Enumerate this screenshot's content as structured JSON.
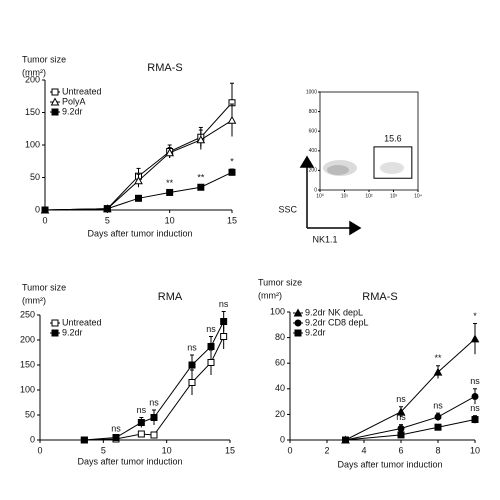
{
  "chart_data": [
    {
      "type": "line",
      "title": "RMA-S",
      "y_label": [
        "Tumor size",
        "(mm²)"
      ],
      "x_label": "Days after tumor induction",
      "x": [
        0,
        5,
        7.5,
        10,
        12.5,
        15
      ],
      "xlim": [
        0,
        15
      ],
      "xticks": [
        0,
        5,
        10,
        15
      ],
      "ylim": [
        0,
        200
      ],
      "yticks": [
        0,
        50,
        100,
        150,
        200
      ],
      "series": [
        {
          "name": "Untreated",
          "color": "#000000",
          "marker": "square",
          "filled": false,
          "values": [
            0,
            2,
            52,
            90,
            112,
            165
          ],
          "errors": [
            0,
            0,
            12,
            10,
            15,
            30
          ],
          "annotations": [
            null,
            null,
            null,
            null,
            null,
            null
          ]
        },
        {
          "name": "PolyA",
          "color": "#000000",
          "marker": "triangle",
          "filled": false,
          "values": [
            0,
            2,
            45,
            88,
            108,
            138
          ],
          "errors": [
            0,
            0,
            10,
            8,
            15,
            25
          ],
          "annotations": [
            null,
            null,
            null,
            null,
            null,
            null
          ]
        },
        {
          "name": "9.2dr",
          "color": "#000000",
          "marker": "square",
          "filled": true,
          "values": [
            0,
            2,
            18,
            27,
            35,
            58
          ],
          "errors": [
            0,
            0,
            3,
            3,
            3,
            5
          ],
          "annotations": [
            null,
            null,
            null,
            "**",
            "**",
            "*"
          ]
        }
      ]
    },
    {
      "type": "flow",
      "y_label": "SSC",
      "x_label": "NK1.1",
      "gate_label": "15.6",
      "log_x": true,
      "xlim": [
        1,
        10000
      ],
      "xticks": [
        {
          "value": 1,
          "label": "10⁰"
        },
        {
          "value": 10,
          "label": "10¹"
        },
        {
          "value": 100,
          "label": "10²"
        },
        {
          "value": 1000,
          "label": "10³"
        },
        {
          "value": 10000,
          "label": "10⁴"
        }
      ],
      "ylim": [
        0,
        1000
      ],
      "yticks": [
        0,
        200,
        400,
        600,
        800,
        1000
      ],
      "gate_x": [
        160,
        5600
      ],
      "gate_y": [
        120,
        440
      ]
    },
    {
      "type": "line",
      "title": "RMA",
      "y_label": [
        "Tumor size",
        "(mm²)"
      ],
      "x_label": "Days after tumor induction",
      "x": [
        3.5,
        6,
        8,
        9,
        12,
        13.5,
        14.5
      ],
      "xlim": [
        0,
        15
      ],
      "xticks": [
        0,
        5,
        10,
        15
      ],
      "ylim": [
        0,
        250
      ],
      "yticks": [
        0,
        50,
        100,
        150,
        200,
        250
      ],
      "series": [
        {
          "name": "Untreated",
          "color": "#000000",
          "marker": "square",
          "filled": false,
          "values": [
            0,
            2,
            12,
            10,
            115,
            155,
            207
          ],
          "errors": [
            0,
            0,
            5,
            5,
            25,
            25,
            25
          ],
          "annotations": [
            null,
            null,
            null,
            null,
            null,
            null,
            null
          ]
        },
        {
          "name": "9.2dr",
          "color": "#000000",
          "marker": "square",
          "filled": true,
          "values": [
            0,
            5,
            35,
            45,
            150,
            187,
            237
          ],
          "errors": [
            0,
            3,
            10,
            15,
            20,
            20,
            20
          ],
          "annotations": [
            null,
            "ns",
            "ns",
            "ns",
            "ns",
            "ns",
            "ns"
          ]
        }
      ]
    },
    {
      "type": "line",
      "title": "RMA-S",
      "y_label": [
        "Tumor size",
        "(mm²)"
      ],
      "x_label": "Days after tumor induction",
      "x": [
        3,
        6,
        8,
        10
      ],
      "xlim": [
        0,
        10
      ],
      "xticks": [
        0,
        2,
        4,
        6,
        8,
        10
      ],
      "ylim": [
        0,
        100
      ],
      "yticks": [
        0,
        20,
        40,
        60,
        80,
        100
      ],
      "series": [
        {
          "name": "9.2dr NK depL",
          "color": "#000000",
          "marker": "triangle",
          "filled": true,
          "values": [
            0,
            22,
            53,
            79
          ],
          "errors": [
            0,
            4,
            5,
            12
          ],
          "annotations": [
            null,
            "ns",
            "**",
            "*"
          ]
        },
        {
          "name": "9.2dr CD8 depL",
          "color": "#000000",
          "marker": "circle",
          "filled": true,
          "values": [
            0,
            9,
            18,
            34
          ],
          "errors": [
            0,
            3,
            3,
            6
          ],
          "annotations": [
            null,
            "ns",
            "ns",
            "ns"
          ]
        },
        {
          "name": "9.2dr",
          "color": "#000000",
          "marker": "square",
          "filled": true,
          "values": [
            0,
            4,
            10,
            16
          ],
          "errors": [
            0,
            2,
            2,
            3
          ],
          "annotations": [
            null,
            null,
            null,
            "ns"
          ]
        }
      ]
    }
  ]
}
